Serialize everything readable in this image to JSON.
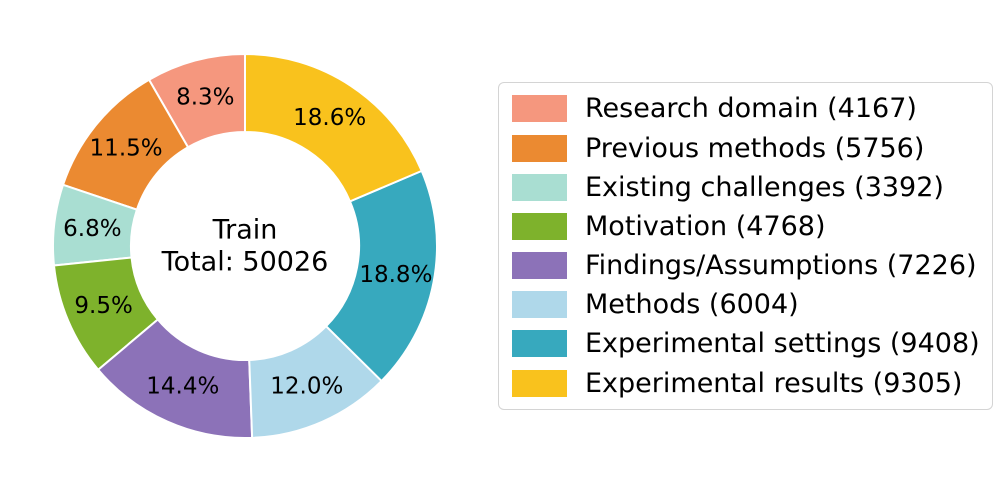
{
  "figure": {
    "background": "#ffffff",
    "legend_border_color": "#d4d4d4"
  },
  "chart_data": {
    "type": "pie",
    "subtype": "donut",
    "title": "",
    "center_text": {
      "line1": "Train",
      "line2": "Total: 50026"
    },
    "total": 50026,
    "start_angle_deg": 90,
    "direction": "counterclockwise",
    "donut_hole_ratio": 0.594,
    "pct_label_radius_ratio": 0.8,
    "legend_position": "right",
    "slices": [
      {
        "label": "Research domain",
        "count": 4167,
        "pct_label": "8.3%",
        "legend_label": "Research domain (4167)",
        "color": "#F5977E"
      },
      {
        "label": "Previous methods",
        "count": 5756,
        "pct_label": "11.5%",
        "legend_label": "Previous methods (5756)",
        "color": "#EB8A31"
      },
      {
        "label": "Existing challenges",
        "count": 3392,
        "pct_label": "6.8%",
        "legend_label": "Existing challenges (3392)",
        "color": "#A9DED2"
      },
      {
        "label": "Motivation",
        "count": 4768,
        "pct_label": "9.5%",
        "legend_label": "Motivation (4768)",
        "color": "#7EB22C"
      },
      {
        "label": "Findings/Assumptions",
        "count": 7226,
        "pct_label": "14.4%",
        "legend_label": "Findings/Assumptions (7226)",
        "color": "#8C72B8"
      },
      {
        "label": "Methods",
        "count": 6004,
        "pct_label": "12.0%",
        "legend_label": "Methods (6004)",
        "color": "#AFD8EA"
      },
      {
        "label": "Experimental settings",
        "count": 9408,
        "pct_label": "18.8%",
        "legend_label": "Experimental settings (9408)",
        "color": "#37A9BE"
      },
      {
        "label": "Experimental results",
        "count": 9305,
        "pct_label": "18.6%",
        "legend_label": "Experimental results (9305)",
        "color": "#F9C21D"
      }
    ]
  }
}
